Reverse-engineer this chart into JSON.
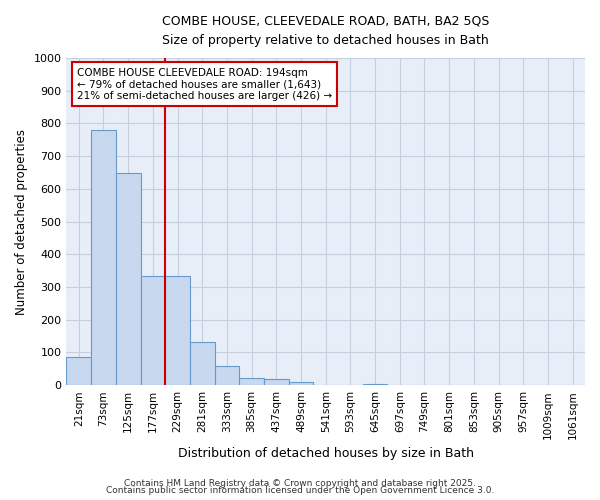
{
  "title1": "COMBE HOUSE, CLEEVEDALE ROAD, BATH, BA2 5QS",
  "title2": "Size of property relative to detached houses in Bath",
  "xlabel": "Distribution of detached houses by size in Bath",
  "ylabel": "Number of detached properties",
  "bar_labels": [
    "21sqm",
    "73sqm",
    "125sqm",
    "177sqm",
    "229sqm",
    "281sqm",
    "333sqm",
    "385sqm",
    "437sqm",
    "489sqm",
    "541sqm",
    "593sqm",
    "645sqm",
    "697sqm",
    "749sqm",
    "801sqm",
    "853sqm",
    "905sqm",
    "957sqm",
    "1009sqm",
    "1061sqm"
  ],
  "bar_values": [
    85,
    780,
    648,
    335,
    335,
    133,
    58,
    22,
    18,
    10,
    0,
    0,
    5,
    0,
    0,
    0,
    0,
    0,
    0,
    0,
    0
  ],
  "bar_color": "#c8d8ee",
  "bar_edge_color": "#6699cc",
  "vline_x": 3,
  "vline_color": "#cc0000",
  "annotation_text": "COMBE HOUSE CLEEVEDALE ROAD: 194sqm\n← 79% of detached houses are smaller (1,643)\n21% of semi-detached houses are larger (426) →",
  "annotation_box_color": "#ffffff",
  "annotation_box_edge": "#cc0000",
  "footer1": "Contains HM Land Registry data © Crown copyright and database right 2025.",
  "footer2": "Contains public sector information licensed under the Open Government Licence 3.0.",
  "fig_bg_color": "#ffffff",
  "plot_bg_color": "#e8eef8",
  "grid_color": "#c5cfe0",
  "ylim": [
    0,
    1000
  ],
  "yticks": [
    0,
    100,
    200,
    300,
    400,
    500,
    600,
    700,
    800,
    900,
    1000
  ]
}
